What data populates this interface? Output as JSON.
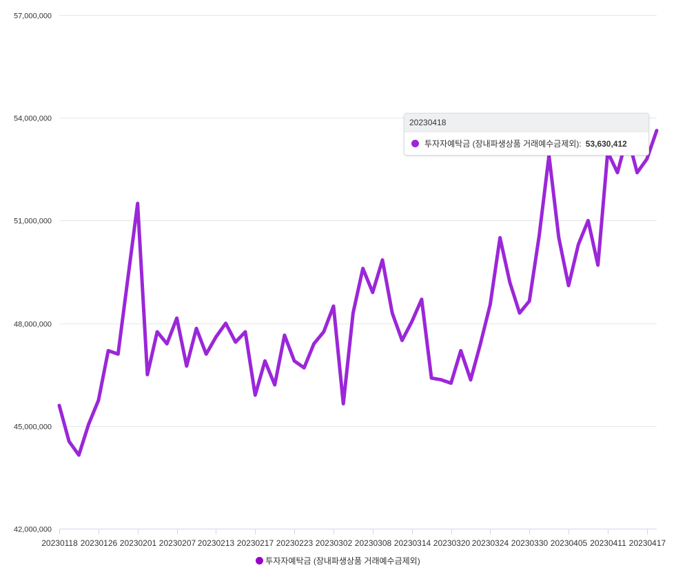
{
  "colors": {
    "series": "#9b27d8",
    "legend_dot": "#9900cc"
  },
  "chart_data": {
    "type": "line",
    "title": "",
    "xlabel": "",
    "ylabel": "",
    "ylim": [
      42000000,
      57000000
    ],
    "yticks": [
      "42,000,000",
      "45,000,000",
      "48,000,000",
      "51,000,000",
      "54,000,000",
      "57,000,000"
    ],
    "xtick_labels": [
      "20230118",
      "20230126",
      "20230201",
      "20230207",
      "20230213",
      "20230217",
      "20230223",
      "20230302",
      "20230308",
      "20230314",
      "20230320",
      "20230324",
      "20230330",
      "20230405",
      "20230411",
      "20230417"
    ],
    "grid": true,
    "legend_position": "bottom",
    "x": [
      "20230118",
      "20230119",
      "20230120",
      "20230125",
      "20230126",
      "20230127",
      "20230130",
      "20230131",
      "20230201",
      "20230202",
      "20230203",
      "20230206",
      "20230207",
      "20230208",
      "20230209",
      "20230210",
      "20230213",
      "20230214",
      "20230215",
      "20230216",
      "20230217",
      "20230220",
      "20230221",
      "20230222",
      "20230223",
      "20230224",
      "20230227",
      "20230228",
      "20230302",
      "20230303",
      "20230306",
      "20230307",
      "20230308",
      "20230309",
      "20230310",
      "20230313",
      "20230314",
      "20230315",
      "20230316",
      "20230317",
      "20230320",
      "20230321",
      "20230322",
      "20230323",
      "20230324",
      "20230327",
      "20230328",
      "20230329",
      "20230330",
      "20230331",
      "20230403",
      "20230404",
      "20230405",
      "20230406",
      "20230407",
      "20230410",
      "20230411",
      "20230412",
      "20230413",
      "20230414",
      "20230417",
      "20230418"
    ],
    "series": [
      {
        "name": "투자자예탁금 (장내파생상품 거래예수금제외)",
        "values": [
          45600000,
          44550000,
          44150000,
          45050000,
          45750000,
          47200000,
          47100000,
          49300000,
          51500000,
          46500000,
          47750000,
          47400000,
          48150000,
          46750000,
          47850000,
          47100000,
          47600000,
          48000000,
          47450000,
          47750000,
          45900000,
          46900000,
          46200000,
          47650000,
          46900000,
          46700000,
          47400000,
          47750000,
          48500000,
          45650000,
          48300000,
          49600000,
          48900000,
          49850000,
          48300000,
          47500000,
          48050000,
          48700000,
          46400000,
          46350000,
          46250000,
          47200000,
          46350000,
          47400000,
          48550000,
          50500000,
          49200000,
          48300000,
          48650000,
          50550000,
          52900000,
          50500000,
          49100000,
          50300000,
          51000000,
          49700000,
          53000000,
          52400000,
          53500000,
          52400000,
          52800000,
          53630412
        ]
      }
    ]
  },
  "tooltip": {
    "date": "20230418",
    "series_label": "투자자예탁금 (장내파생상품 거래예수금제외):",
    "value": "53,630,412"
  },
  "legend": {
    "label": "투자자예탁금 (장내파생상품 거래예수금제외)"
  }
}
